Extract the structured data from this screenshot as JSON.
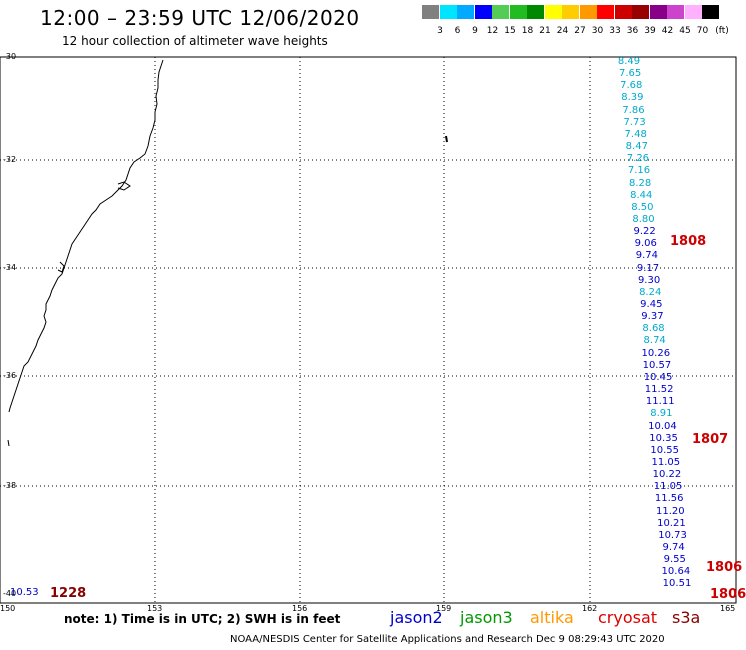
{
  "title": "12:00 – 23:59 UTC 12/06/2020",
  "subtitle": "12 hour collection of altimeter wave heights",
  "colorbar": {
    "labels": [
      "3",
      "6",
      "9",
      "12",
      "15",
      "18",
      "21",
      "24",
      "27",
      "30",
      "33",
      "36",
      "39",
      "42",
      "45",
      "70"
    ],
    "unit": "(ft)",
    "colors": [
      "#808080",
      "#00e5ff",
      "#00aaff",
      "#0000ff",
      "#55cc55",
      "#22bb22",
      "#008800",
      "#ffff00",
      "#ffcc00",
      "#ff9900",
      "#ff0000",
      "#cc0000",
      "#990000",
      "#880088",
      "#cc44cc",
      "#ffb0ff",
      "#000000"
    ]
  },
  "axes": {
    "y_labels": [
      "-30",
      "-32",
      "-34",
      "-36",
      "-38",
      "-40"
    ],
    "x_labels": [
      "150",
      "153",
      "156",
      "159",
      "162",
      "165"
    ]
  },
  "track": {
    "values": [
      "8.49",
      "7.65",
      "7.68",
      "8.39",
      "7.86",
      "7.73",
      "7.48",
      "8.47",
      "7.26",
      "7.16",
      "8.28",
      "8.44",
      "8.50",
      "8.80",
      "9.22",
      "9.06",
      "9.74",
      "9.17",
      "9.30",
      "8.24",
      "9.45",
      "9.37",
      "8.68",
      "8.74",
      "10.26",
      "10.57",
      "10.45",
      "11.52",
      "11.11",
      "8.91",
      "10.04",
      "10.35",
      "10.55",
      "11.05",
      "10.22",
      "11.05",
      "11.56",
      "11.20",
      "10.21",
      "10.73",
      "9.74",
      "9.55",
      "10.64",
      "10.51"
    ],
    "colors": [
      "#00aacc",
      "#00aacc",
      "#00aacc",
      "#00aacc",
      "#00aacc",
      "#00aacc",
      "#00aacc",
      "#00aacc",
      "#00aacc",
      "#00aacc",
      "#00aacc",
      "#00aacc",
      "#00aacc",
      "#00aacc",
      "#0000cc",
      "#0000cc",
      "#0000cc",
      "#0000cc",
      "#0000cc",
      "#00aacc",
      "#0000cc",
      "#0000cc",
      "#00aacc",
      "#00aacc",
      "#0000cc",
      "#0000cc",
      "#0000cc",
      "#0000cc",
      "#0000cc",
      "#00aacc",
      "#0000cc",
      "#0000cc",
      "#0000cc",
      "#0000cc",
      "#0000cc",
      "#0000cc",
      "#0000cc",
      "#0000cc",
      "#0000cc",
      "#0000cc",
      "#0000cc",
      "#0000cc",
      "#0000cc",
      "#0000cc"
    ]
  },
  "pass_times": [
    "1808",
    "1807",
    "1806",
    "1806"
  ],
  "extra_value": {
    "value": "10.53",
    "time": "1228"
  },
  "note": "note: 1) Time is in UTC; 2) SWH is in feet",
  "satellites": [
    {
      "name": "jason2",
      "color": "#0000cc"
    },
    {
      "name": "jason3",
      "color": "#009900"
    },
    {
      "name": "altika",
      "color": "#ff9900"
    },
    {
      "name": "cryosat",
      "color": "#dd0000"
    },
    {
      "name": "s3a",
      "color": "#880000"
    }
  ],
  "footer": "NOAA/NESDIS Center for Satellite Applications and Research    Dec  9 08:29:43 UTC 2020"
}
